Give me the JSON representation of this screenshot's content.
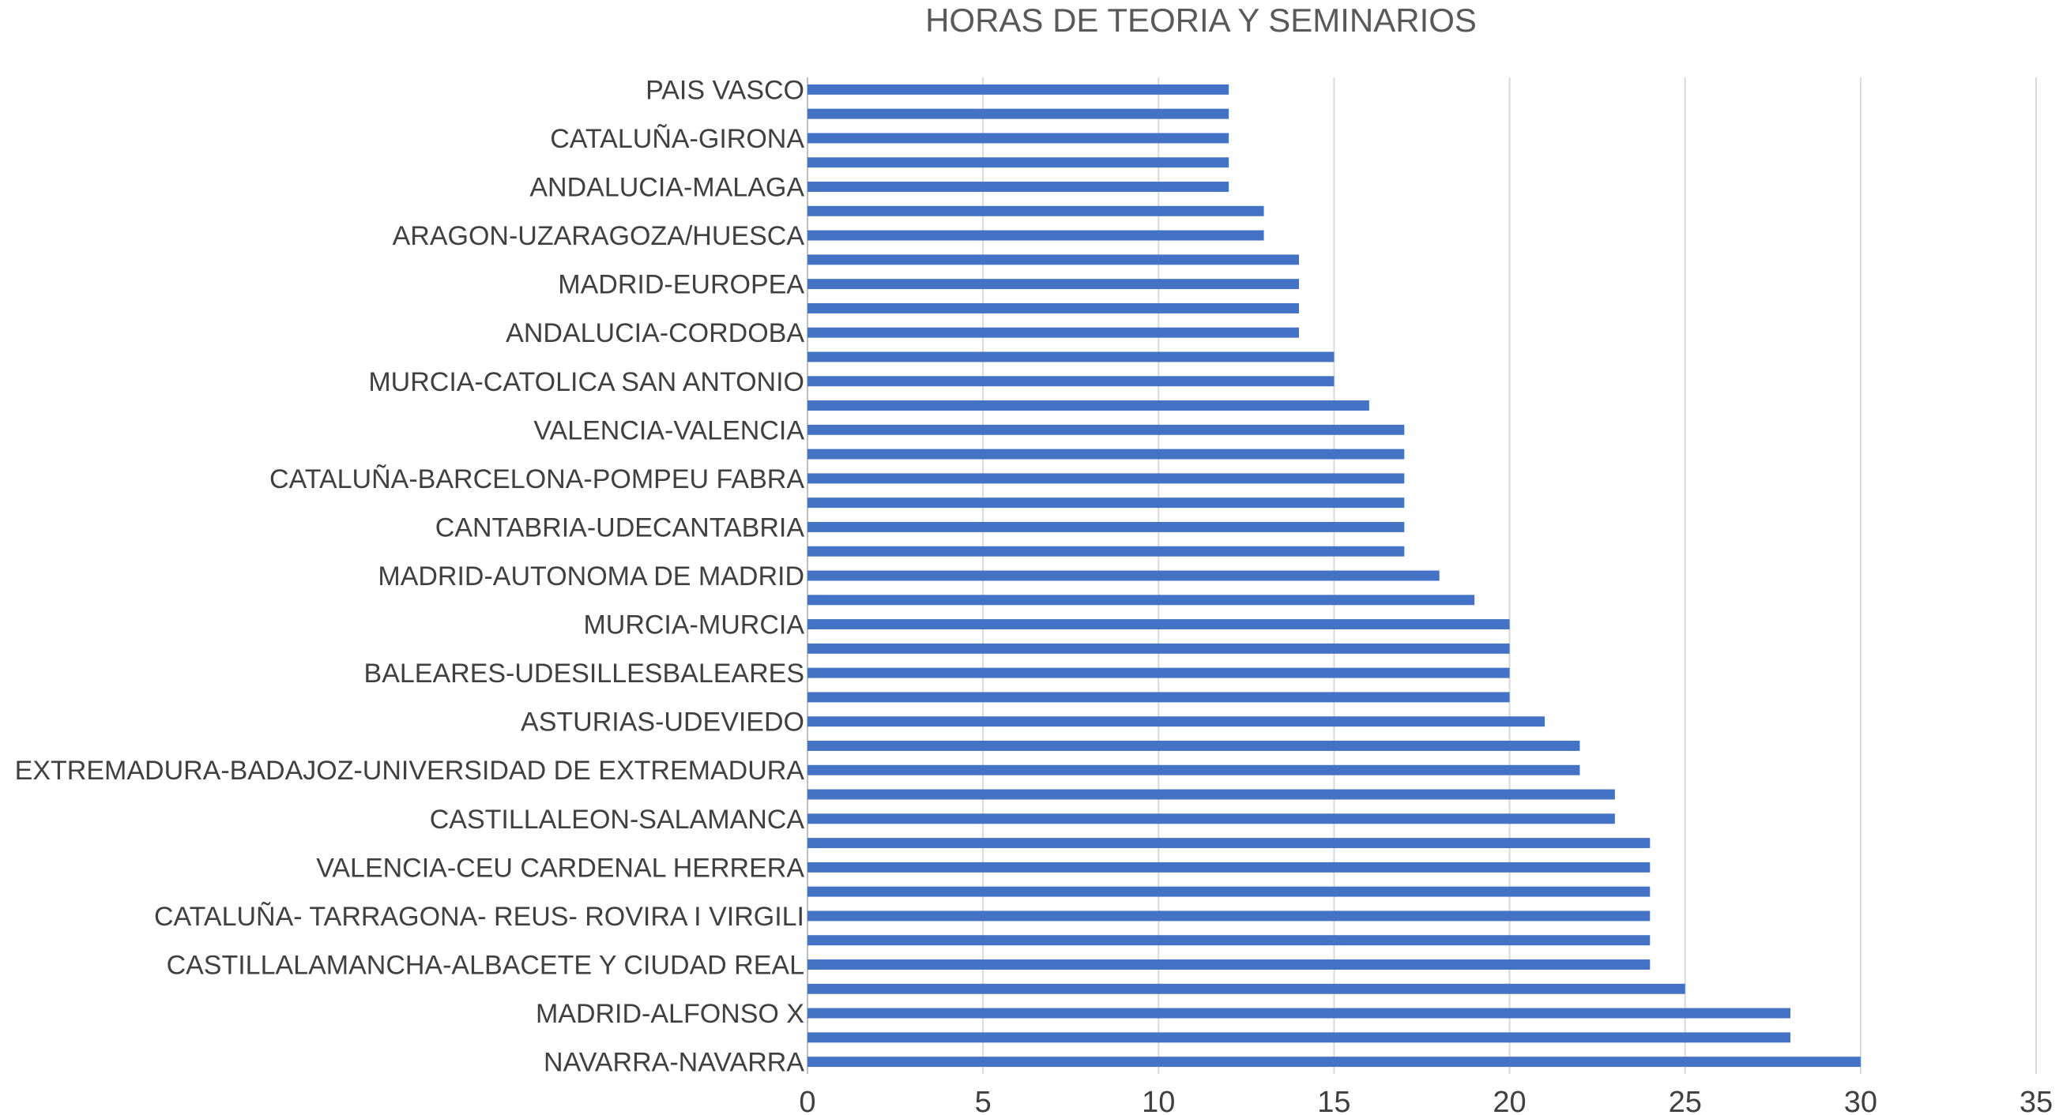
{
  "chart_data": {
    "type": "bar",
    "orientation": "horizontal",
    "title": "HORAS DE TEORIA Y SEMINARIOS",
    "xlabel": "",
    "ylabel": "",
    "xlim": [
      0,
      35
    ],
    "x_ticks": [
      0,
      5,
      10,
      15,
      20,
      25,
      30,
      35
    ],
    "grid": true,
    "legend": "none",
    "bar_color": "#4472C4",
    "labeled_categories": [
      "PAIS VASCO",
      "CATALUÑA-GIRONA",
      "ANDALUCIA-MALAGA",
      "ARAGON-UZARAGOZA/HUESCA",
      "MADRID-EUROPEA",
      "ANDALUCIA-CORDOBA",
      "MURCIA-CATOLICA SAN ANTONIO",
      "VALENCIA-VALENCIA",
      "CATALUÑA-BARCELONA-POMPEU FABRA",
      "CANTABRIA-UDECANTABRIA",
      "MADRID-AUTONOMA DE MADRID",
      "MURCIA-MURCIA",
      "BALEARES-UDESILLESBALEARES",
      "ASTURIAS-UDEVIEDO",
      "EXTREMADURA-BADAJOZ-UNIVERSIDAD DE EXTREMADURA",
      "CASTILLALEON-SALAMANCA",
      "VALENCIA-CEU CARDENAL HERRERA",
      "CATALUÑA- TARRAGONA- REUS- ROVIRA I VIRGILI",
      "CASTILLALAMANCHA-ALBACETE Y CIUDAD REAL",
      "MADRID-ALFONSO X",
      "NAVARRA-NAVARRA"
    ],
    "values": [
      12,
      12,
      12,
      12,
      12,
      13,
      13,
      14,
      14,
      14,
      14,
      15,
      15,
      16,
      17,
      17,
      17,
      17,
      17,
      17,
      18,
      19,
      20,
      20,
      20,
      20,
      21,
      22,
      22,
      23,
      23,
      24,
      24,
      24,
      24,
      24,
      24,
      25,
      28,
      28,
      30
    ]
  }
}
